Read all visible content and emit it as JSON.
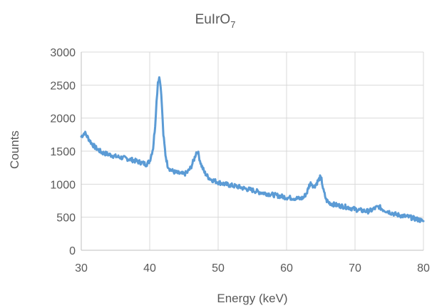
{
  "chart_data": {
    "type": "line",
    "title": {
      "main": "EuIrO",
      "subscript": "7"
    },
    "xlabel": "Energy (keV)",
    "ylabel": "Counts",
    "xlim": [
      30,
      80
    ],
    "ylim": [
      0,
      3000
    ],
    "x_ticks": [
      30,
      40,
      50,
      60,
      70,
      80
    ],
    "y_ticks": [
      0,
      500,
      1000,
      1500,
      2000,
      2500,
      3000
    ],
    "x_tick_labels": [
      "30",
      "40",
      "50",
      "60",
      "70",
      "80"
    ],
    "y_tick_labels": [
      "0",
      "500",
      "1000",
      "1500",
      "2000",
      "2500",
      "3000"
    ],
    "grid": true,
    "legend": "none",
    "line_color": "#5b9bd5",
    "series": [
      {
        "x": [
          30.0,
          30.5,
          31.0,
          31.5,
          32.0,
          33.0,
          34.0,
          35.0,
          36.0,
          37.0,
          38.0,
          39.0,
          39.5,
          40.0,
          40.5,
          40.8,
          41.0,
          41.2,
          41.4,
          41.6,
          41.8,
          42.0,
          42.3,
          42.6,
          43.0,
          43.5,
          44.0,
          44.5,
          45.0,
          45.5,
          46.0,
          46.5,
          46.8,
          47.0,
          47.2,
          47.5,
          48.0,
          48.5,
          49.0,
          50.0,
          51.0,
          52.0,
          53.0,
          54.0,
          55.0,
          56.0,
          57.0,
          58.0,
          59.0,
          60.0,
          61.0,
          62.0,
          62.5,
          63.0,
          63.3,
          63.6,
          64.0,
          64.3,
          64.6,
          64.9,
          65.1,
          65.4,
          65.8,
          66.2,
          67.0,
          68.0,
          69.0,
          70.0,
          71.0,
          72.0,
          72.5,
          73.0,
          73.5,
          74.0,
          75.0,
          76.0,
          77.0,
          78.0,
          79.0,
          80.0
        ],
        "y": [
          1720,
          1780,
          1700,
          1620,
          1560,
          1480,
          1450,
          1420,
          1400,
          1380,
          1350,
          1320,
          1300,
          1350,
          1550,
          1900,
          2250,
          2550,
          2620,
          2500,
          2150,
          1750,
          1450,
          1290,
          1220,
          1190,
          1170,
          1160,
          1150,
          1180,
          1250,
          1380,
          1480,
          1500,
          1420,
          1300,
          1180,
          1110,
          1070,
          1030,
          1000,
          980,
          960,
          930,
          910,
          880,
          860,
          840,
          820,
          800,
          790,
          780,
          800,
          880,
          980,
          1020,
          960,
          1000,
          1050,
          1100,
          1070,
          900,
          760,
          720,
          690,
          670,
          650,
          620,
          600,
          590,
          610,
          640,
          660,
          620,
          580,
          540,
          520,
          500,
          470,
          440
        ]
      }
    ]
  }
}
